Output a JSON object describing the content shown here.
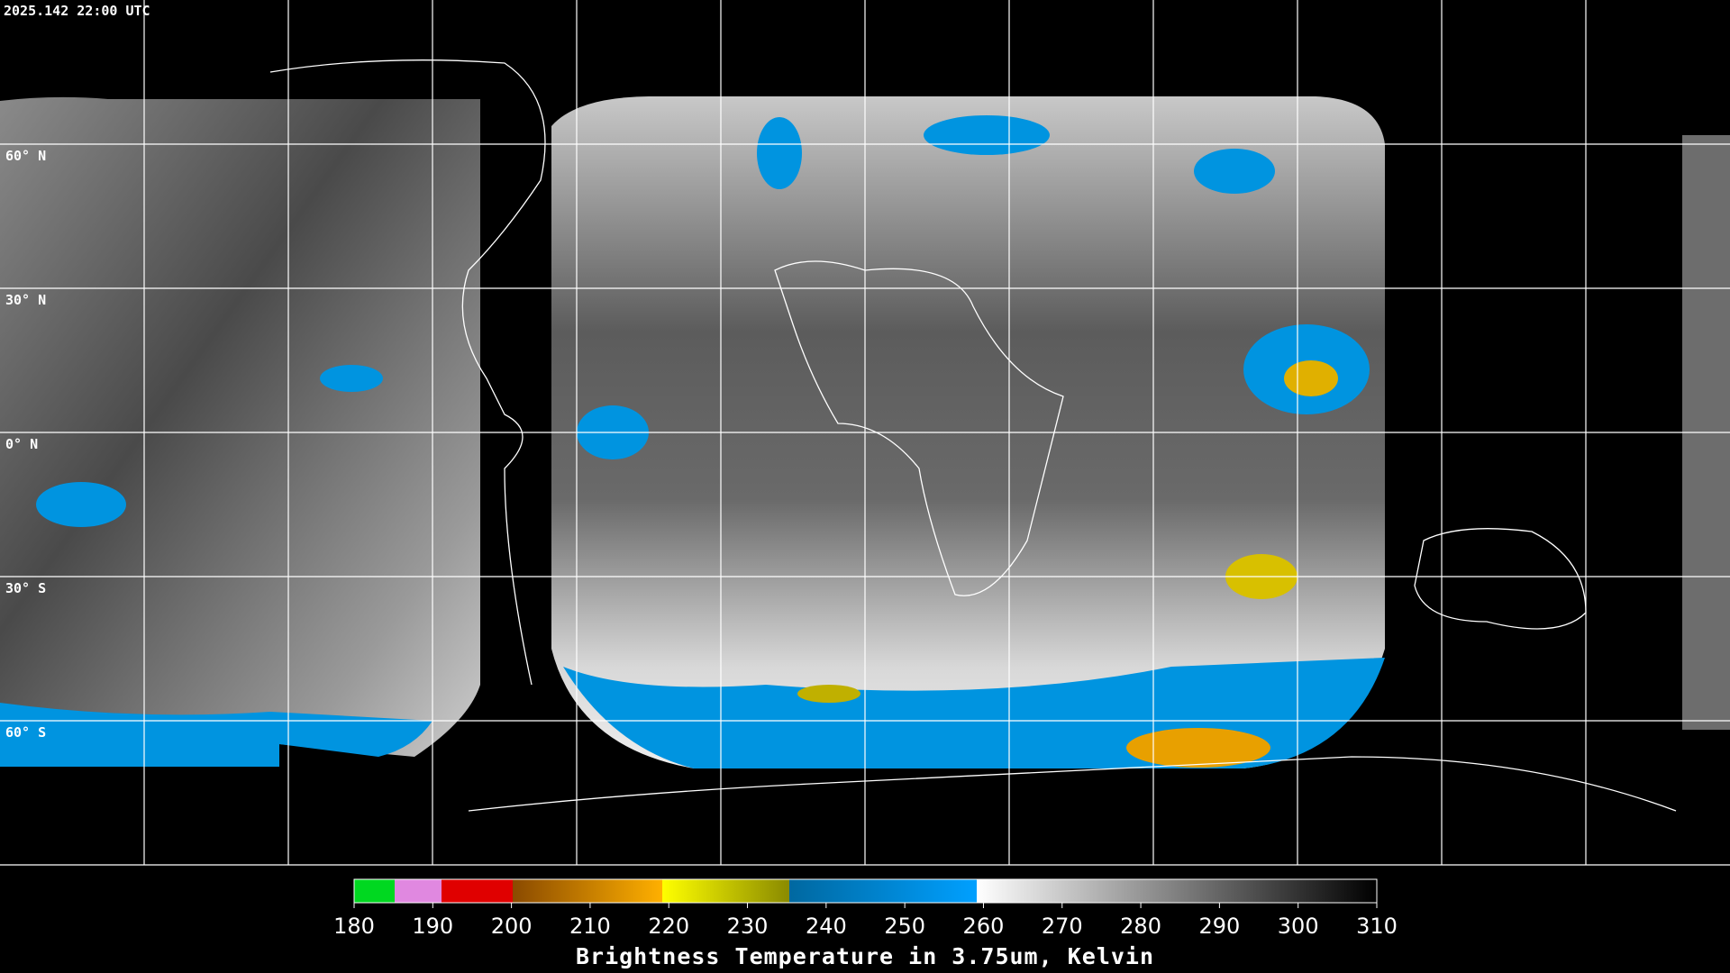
{
  "header": {
    "timestamp": "2025.142 22:00 UTC"
  },
  "map": {
    "lat_labels": [
      "60° N",
      "30° N",
      "0° N",
      "30° S",
      "60° S"
    ]
  },
  "colorbar": {
    "ticks": [
      180,
      190,
      200,
      210,
      220,
      230,
      240,
      250,
      260,
      270,
      280,
      290,
      300,
      310
    ],
    "title": "Brightness Temperature in 3.75um, Kelvin"
  }
}
